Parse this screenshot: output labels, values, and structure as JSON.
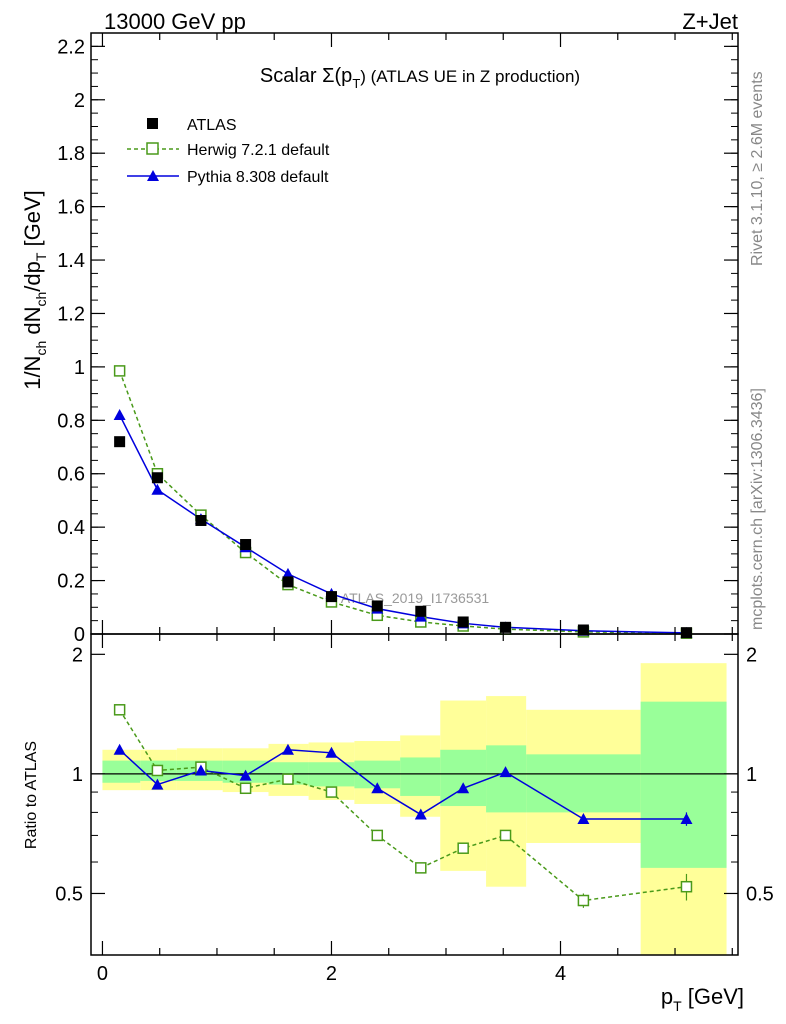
{
  "header": {
    "left_label": "13000 GeV pp",
    "right_label": "Z+Jet"
  },
  "side_labels": {
    "rivet": "Rivet 3.1.10, ≥ 2.6M events",
    "mcplots": "mcplots.cern.ch [arXiv:1306.3436]"
  },
  "watermark": "ATLAS_2019_I1736531",
  "chart_data": [
    {
      "panel": "main",
      "type": "scatter",
      "title": "Scalar Σ(pT) (ATLAS UE in Z production)",
      "title_parts": {
        "prefix": "Scalar Σ(p",
        "sub": "T",
        "suffix": ") (ATLAS UE in Z production)"
      },
      "ylabel": "1/Nch dNch/dpT [GeV]",
      "ylabel_parts": {
        "a": "1/N",
        "a_sub": "ch",
        "b": " dN",
        "b_sub": "ch",
        "c": "/dp",
        "c_sub": "T",
        "d": " [GeV]"
      },
      "xlim": [
        -0.1,
        5.55
      ],
      "ylim": [
        0,
        2.25
      ],
      "yticks": [
        0,
        0.2,
        0.4,
        0.6,
        0.8,
        1,
        1.2,
        1.4,
        1.6,
        1.8,
        2,
        2.2
      ],
      "ytick_labels": [
        "0",
        "0.2",
        "0.4",
        "0.6",
        "0.8",
        "1",
        "1.2",
        "1.4",
        "1.6",
        "1.8",
        "2",
        "2.2"
      ],
      "legend_position": "top-left",
      "series": [
        {
          "name": "ATLAS",
          "kind": "data",
          "color": "#000000",
          "x": [
            0.15,
            0.48,
            0.86,
            1.25,
            1.62,
            2.0,
            2.4,
            2.78,
            3.15,
            3.52,
            4.2,
            5.1
          ],
          "y": [
            0.72,
            0.585,
            0.425,
            0.335,
            0.195,
            0.14,
            0.105,
            0.085,
            0.045,
            0.025,
            0.015,
            0.005
          ]
        },
        {
          "name": "Herwig 7.2.1 default",
          "kind": "mc",
          "color": "#4a9a1a",
          "marker": "open-square",
          "line": "dashed",
          "x": [
            0.15,
            0.48,
            0.86,
            1.25,
            1.62,
            2.0,
            2.4,
            2.78,
            3.15,
            3.52,
            4.2,
            5.1
          ],
          "y": [
            0.985,
            0.6,
            0.445,
            0.305,
            0.185,
            0.12,
            0.07,
            0.045,
            0.03,
            0.018,
            0.008,
            0.003
          ]
        },
        {
          "name": "Pythia 8.308 default",
          "kind": "mc",
          "color": "#0000dd",
          "marker": "filled-triangle",
          "line": "solid",
          "x": [
            0.15,
            0.48,
            0.86,
            1.25,
            1.62,
            2.0,
            2.4,
            2.78,
            3.15,
            3.52,
            4.2,
            5.1
          ],
          "y": [
            0.82,
            0.54,
            0.43,
            0.325,
            0.225,
            0.15,
            0.095,
            0.065,
            0.04,
            0.025,
            0.012,
            0.004
          ]
        }
      ]
    },
    {
      "panel": "ratio",
      "type": "line",
      "ylabel": "Ratio to ATLAS",
      "xlabel": "pT [GeV]",
      "xlabel_parts": {
        "a": "p",
        "a_sub": "T",
        "b": " [GeV]"
      },
      "xlim": [
        -0.1,
        5.55
      ],
      "ylim": [
        0.35,
        2.25
      ],
      "xticks": [
        0,
        2,
        4
      ],
      "xtick_labels": [
        "0",
        "2",
        "4"
      ],
      "yticks": [
        0.5,
        1,
        2
      ],
      "ytick_labels": [
        "0.5",
        "1",
        "2"
      ],
      "reference_line": 1,
      "uncertainty_bands": {
        "bins": [
          [
            0.0,
            0.33
          ],
          [
            0.33,
            0.65
          ],
          [
            0.65,
            1.05
          ],
          [
            1.05,
            1.45
          ],
          [
            1.45,
            1.8
          ],
          [
            1.8,
            2.2
          ],
          [
            2.2,
            2.6
          ],
          [
            2.6,
            2.95
          ],
          [
            2.95,
            3.35
          ],
          [
            3.35,
            3.7
          ],
          [
            3.7,
            4.7
          ],
          [
            4.7,
            5.45
          ]
        ],
        "inner": {
          "name": "stat",
          "color": "#99ff99",
          "lower": [
            0.95,
            0.96,
            0.96,
            0.95,
            0.94,
            0.93,
            0.92,
            0.88,
            0.83,
            0.8,
            0.8,
            0.58
          ],
          "upper": [
            1.08,
            1.08,
            1.08,
            1.08,
            1.07,
            1.07,
            1.08,
            1.1,
            1.15,
            1.18,
            1.12,
            1.52
          ]
        },
        "outer": {
          "name": "total",
          "color": "#ffff99",
          "lower": [
            0.91,
            0.91,
            0.91,
            0.9,
            0.88,
            0.86,
            0.84,
            0.78,
            0.57,
            0.52,
            0.67,
            0.35
          ],
          "upper": [
            1.15,
            1.15,
            1.16,
            1.16,
            1.19,
            1.2,
            1.21,
            1.25,
            1.53,
            1.57,
            1.45,
            1.9
          ]
        }
      },
      "series": [
        {
          "name": "Herwig 7.2.1 default",
          "color": "#4a9a1a",
          "marker": "open-square",
          "line": "dashed",
          "x": [
            0.15,
            0.48,
            0.86,
            1.25,
            1.62,
            2.0,
            2.4,
            2.78,
            3.15,
            3.52,
            4.2,
            5.1
          ],
          "y": [
            1.45,
            1.02,
            1.04,
            0.92,
            0.97,
            0.9,
            0.7,
            0.58,
            0.65,
            0.7,
            0.48,
            0.52
          ],
          "yerr": [
            0.01,
            0.01,
            0.01,
            0.01,
            0.01,
            0.01,
            0.01,
            0.01,
            0.015,
            0.02,
            0.02,
            0.04
          ]
        },
        {
          "name": "Pythia 8.308 default",
          "color": "#0000dd",
          "marker": "filled-triangle",
          "line": "solid",
          "x": [
            0.15,
            0.48,
            0.86,
            1.25,
            1.62,
            2.0,
            2.4,
            2.78,
            3.15,
            3.52,
            4.2,
            5.1
          ],
          "y": [
            1.15,
            0.94,
            1.02,
            0.99,
            1.15,
            1.13,
            0.92,
            0.79,
            0.92,
            1.01,
            0.77,
            0.77
          ],
          "yerr": [
            0.005,
            0.005,
            0.005,
            0.005,
            0.005,
            0.005,
            0.01,
            0.01,
            0.01,
            0.02,
            0.015,
            0.03
          ]
        }
      ]
    }
  ]
}
